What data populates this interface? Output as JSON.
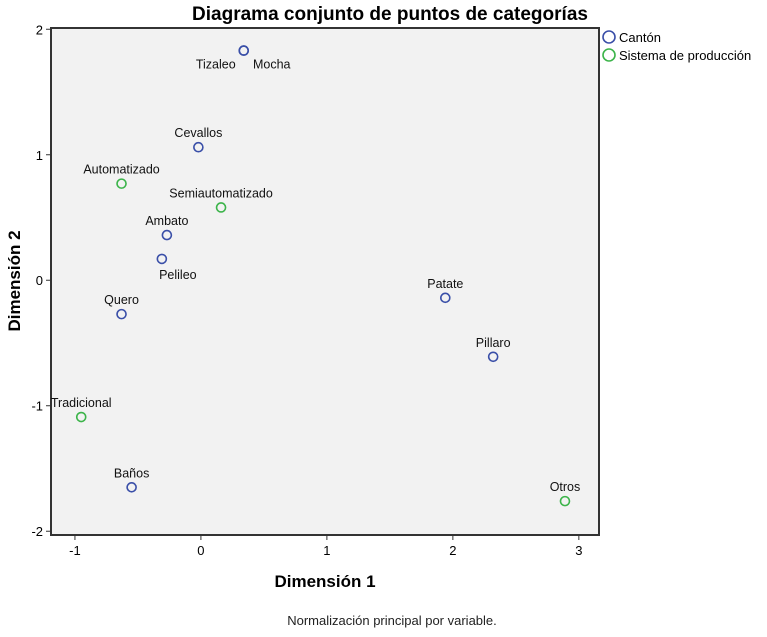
{
  "chart_data": {
    "type": "scatter",
    "title": "Diagrama conjunto de puntos de categorías",
    "xlabel": "Dimensión 1",
    "ylabel": "Dimensión 2",
    "footnote": "Normalización principal por variable.",
    "xlim": [
      -1.19,
      3.16
    ],
    "ylim": [
      -2.03,
      2.01
    ],
    "xticks": [
      -1,
      0,
      1,
      2,
      3
    ],
    "yticks": [
      -2,
      -1,
      0,
      1,
      2
    ],
    "grid": false,
    "legend_position": "top-right-outside",
    "series": [
      {
        "name": "Cantón",
        "color": "#3a4fa8",
        "points": [
          {
            "label": "Tizaleo",
            "x": 0.34,
            "y": 1.83
          },
          {
            "label": "Mocha",
            "x": 0.34,
            "y": 1.83
          },
          {
            "label": "Cevallos",
            "x": -0.02,
            "y": 1.06
          },
          {
            "label": "Ambato",
            "x": -0.27,
            "y": 0.36
          },
          {
            "label": "Pelileo",
            "x": -0.31,
            "y": 0.17
          },
          {
            "label": "Quero",
            "x": -0.63,
            "y": -0.27
          },
          {
            "label": "Patate",
            "x": 1.94,
            "y": -0.14
          },
          {
            "label": "Pillaro",
            "x": 2.32,
            "y": -0.61
          },
          {
            "label": "Baños",
            "x": -0.55,
            "y": -1.65
          }
        ]
      },
      {
        "name": "Sistema de producción",
        "color": "#3cb44a",
        "points": [
          {
            "label": "Automatizado",
            "x": -0.63,
            "y": 0.77
          },
          {
            "label": "Semiautomatizado",
            "x": 0.16,
            "y": 0.58
          },
          {
            "label": "Tradicional",
            "x": -0.95,
            "y": -1.09
          },
          {
            "label": "Otros",
            "x": 2.89,
            "y": -1.76
          }
        ]
      }
    ]
  }
}
